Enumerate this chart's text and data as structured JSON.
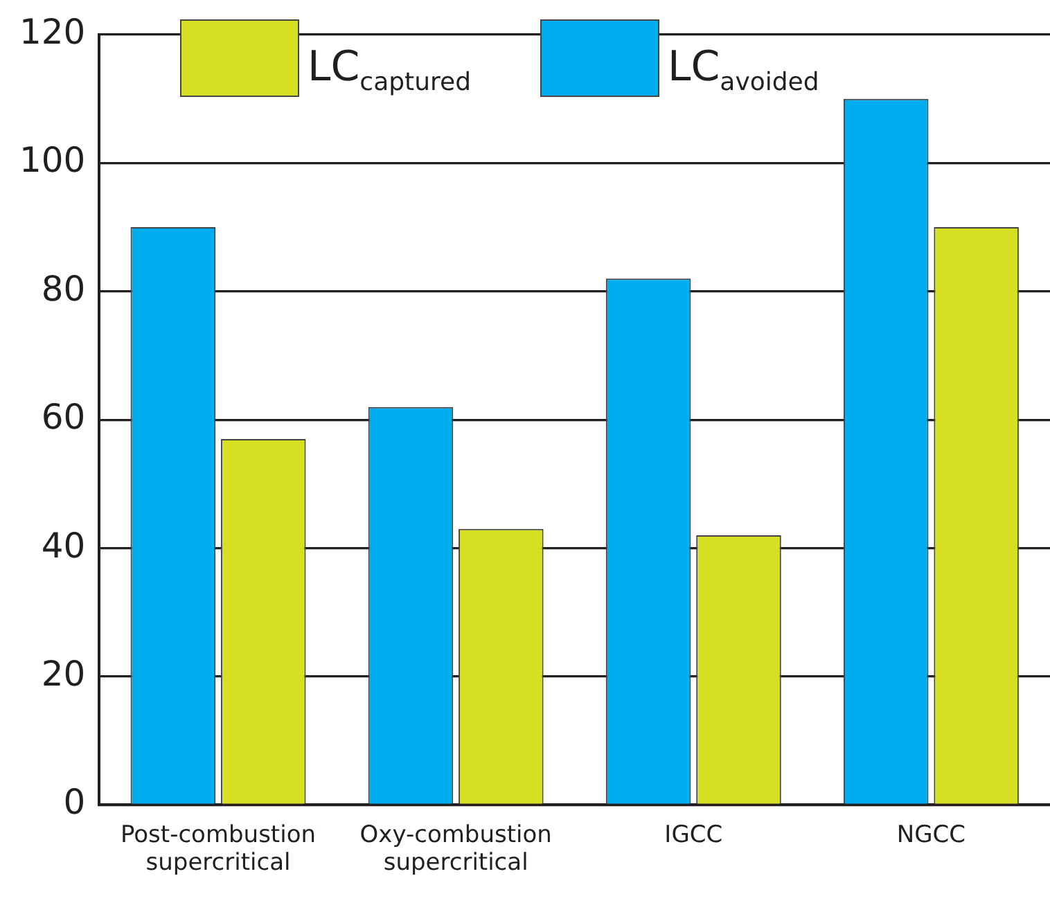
{
  "chart_data": {
    "type": "bar",
    "categories": [
      "Post-combustion supercritical",
      "Oxy-combustion supercritical",
      "IGCC",
      "NGCC"
    ],
    "series": [
      {
        "name": "LC$_{avoided}$",
        "color": "#00aeef",
        "values": [
          90,
          62,
          82,
          110
        ]
      },
      {
        "name": "LC$_{captured}$",
        "color": "#d7df23",
        "values": [
          57,
          43,
          42,
          90
        ]
      }
    ],
    "ylim": [
      0,
      120
    ],
    "yticks": [
      0,
      20,
      40,
      60,
      80,
      100,
      120
    ],
    "grid": "y",
    "legend": "top"
  }
}
